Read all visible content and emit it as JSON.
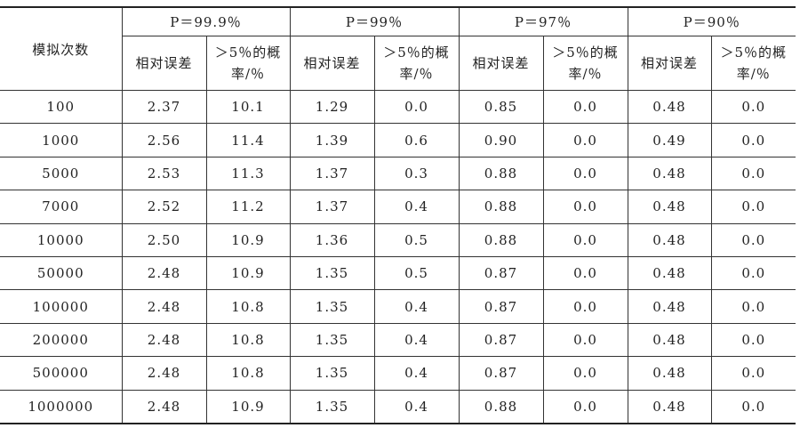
{
  "table": {
    "row_header": "模拟次数",
    "groups": [
      "P＝99.9％",
      "P＝99％",
      "P＝97％",
      "P＝90％"
    ],
    "subheaders": [
      "相对误差",
      "＞5％的概率/％"
    ],
    "rows": [
      [
        "100",
        "2.37",
        "10.1",
        "1.29",
        "0.0",
        "0.85",
        "0.0",
        "0.48",
        "0.0"
      ],
      [
        "1000",
        "2.56",
        "11.4",
        "1.39",
        "0.6",
        "0.90",
        "0.0",
        "0.49",
        "0.0"
      ],
      [
        "5000",
        "2.53",
        "11.3",
        "1.37",
        "0.3",
        "0.88",
        "0.0",
        "0.48",
        "0.0"
      ],
      [
        "7000",
        "2.52",
        "11.2",
        "1.37",
        "0.4",
        "0.88",
        "0.0",
        "0.48",
        "0.0"
      ],
      [
        "10000",
        "2.50",
        "10.9",
        "1.36",
        "0.5",
        "0.88",
        "0.0",
        "0.48",
        "0.0"
      ],
      [
        "50000",
        "2.48",
        "10.9",
        "1.35",
        "0.5",
        "0.87",
        "0.0",
        "0.48",
        "0.0"
      ],
      [
        "100000",
        "2.48",
        "10.8",
        "1.35",
        "0.4",
        "0.87",
        "0.0",
        "0.48",
        "0.0"
      ],
      [
        "200000",
        "2.48",
        "10.8",
        "1.35",
        "0.4",
        "0.87",
        "0.0",
        "0.48",
        "0.0"
      ],
      [
        "500000",
        "2.48",
        "10.8",
        "1.35",
        "0.4",
        "0.87",
        "0.0",
        "0.48",
        "0.0"
      ],
      [
        "1000000",
        "2.48",
        "10.9",
        "1.35",
        "0.4",
        "0.88",
        "0.0",
        "0.48",
        "0.0"
      ]
    ]
  }
}
